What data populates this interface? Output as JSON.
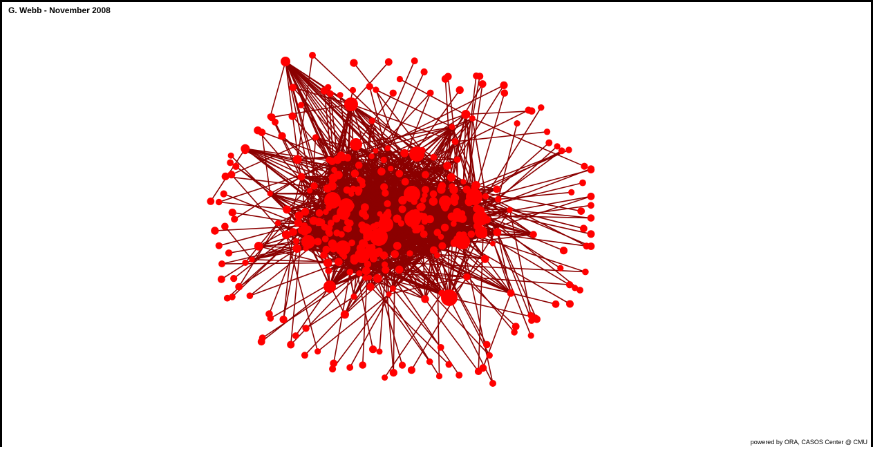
{
  "title": "G. Webb - November 2008",
  "credit": "powered by ORA, CASOS Center @ CMU",
  "colors": {
    "node": "#ff0000",
    "edge": "#8b0000",
    "background": "#ffffff",
    "frame": "#000000"
  },
  "diagram": {
    "type": "network-graph",
    "layout": "force-directed",
    "node_shape": "circle"
  }
}
